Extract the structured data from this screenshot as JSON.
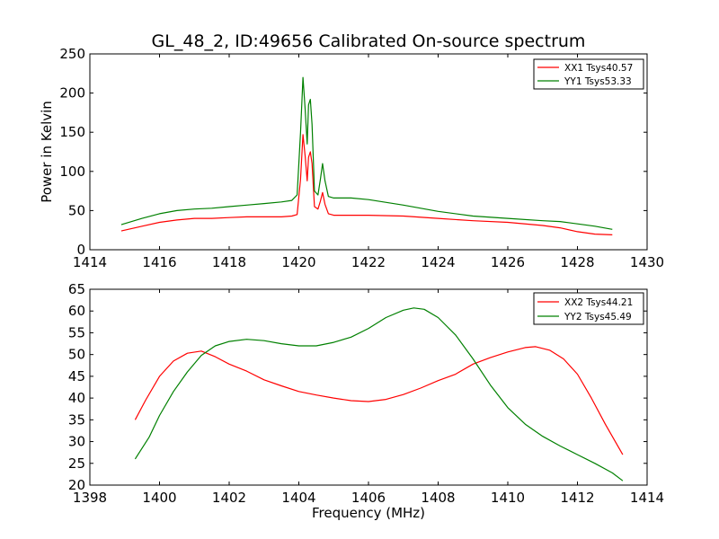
{
  "figure": {
    "title": "GL_48_2, ID:49656 Calibrated On-source spectrum",
    "ylabel": "Power in Kelvin",
    "xlabel": "Frequency (MHz)"
  },
  "colors": {
    "red": "#ff0000",
    "green": "#008000"
  },
  "chart_data": [
    {
      "type": "line",
      "title": "GL_48_2, ID:49656 Calibrated On-source spectrum",
      "ylabel": "Power in Kelvin",
      "xlabel": "",
      "xlim": [
        1414,
        1430
      ],
      "ylim": [
        0,
        250
      ],
      "xticks": [
        1414,
        1416,
        1418,
        1420,
        1422,
        1424,
        1426,
        1428,
        1430
      ],
      "yticks": [
        0,
        50,
        100,
        150,
        200,
        250
      ],
      "grid": false,
      "legend": "top-right",
      "series": [
        {
          "name": "XX1 Tsys40.57",
          "color": "#ff0000",
          "x": [
            1414.9,
            1415.5,
            1416.0,
            1416.5,
            1417.0,
            1417.5,
            1418.0,
            1418.5,
            1419.0,
            1419.5,
            1419.8,
            1419.95,
            1420.05,
            1420.12,
            1420.18,
            1420.24,
            1420.28,
            1420.33,
            1420.38,
            1420.45,
            1420.55,
            1420.62,
            1420.68,
            1420.75,
            1420.85,
            1421.0,
            1421.5,
            1422.0,
            1423.0,
            1424.0,
            1425.0,
            1426.0,
            1427.0,
            1427.5,
            1428.0,
            1428.5,
            1429.0
          ],
          "y": [
            24,
            30,
            35,
            38,
            40,
            40,
            41,
            42,
            42,
            42,
            43,
            45,
            90,
            147,
            120,
            88,
            118,
            125,
            110,
            55,
            52,
            62,
            73,
            58,
            46,
            44,
            44,
            44,
            43,
            40,
            37,
            35,
            31,
            28,
            23,
            20,
            19
          ]
        },
        {
          "name": "YY1 Tsys53.33",
          "color": "#008000",
          "x": [
            1414.9,
            1415.5,
            1416.0,
            1416.5,
            1417.0,
            1417.5,
            1418.0,
            1418.5,
            1419.0,
            1419.5,
            1419.8,
            1419.95,
            1420.05,
            1420.12,
            1420.18,
            1420.24,
            1420.28,
            1420.33,
            1420.38,
            1420.45,
            1420.55,
            1420.62,
            1420.68,
            1420.75,
            1420.85,
            1421.0,
            1421.5,
            1422.0,
            1423.0,
            1424.0,
            1425.0,
            1426.0,
            1427.0,
            1427.5,
            1428.0,
            1428.5,
            1429.0
          ],
          "y": [
            32,
            40,
            46,
            50,
            52,
            53,
            55,
            57,
            59,
            61,
            63,
            70,
            150,
            220,
            180,
            135,
            185,
            192,
            160,
            75,
            70,
            90,
            110,
            88,
            68,
            66,
            66,
            64,
            57,
            49,
            43,
            40,
            37,
            36,
            33,
            30,
            26
          ]
        }
      ]
    },
    {
      "type": "line",
      "title": "",
      "ylabel": "",
      "xlabel": "Frequency (MHz)",
      "xlim": [
        1398,
        1414
      ],
      "ylim": [
        20,
        65
      ],
      "xticks": [
        1398,
        1400,
        1402,
        1404,
        1406,
        1408,
        1410,
        1412,
        1414
      ],
      "yticks": [
        20,
        25,
        30,
        35,
        40,
        45,
        50,
        55,
        60,
        65
      ],
      "grid": false,
      "legend": "top-right",
      "series": [
        {
          "name": "XX2 Tsys44.21",
          "color": "#ff0000",
          "x": [
            1399.3,
            1399.6,
            1400.0,
            1400.4,
            1400.8,
            1401.2,
            1401.6,
            1402.0,
            1402.5,
            1403.0,
            1403.5,
            1404.0,
            1404.5,
            1405.0,
            1405.5,
            1406.0,
            1406.5,
            1407.0,
            1407.5,
            1408.0,
            1408.5,
            1409.0,
            1409.5,
            1410.0,
            1410.5,
            1410.8,
            1411.2,
            1411.6,
            1412.0,
            1412.4,
            1412.8,
            1413.3
          ],
          "y": [
            35,
            39.5,
            45,
            48.5,
            50.3,
            50.8,
            49.5,
            47.8,
            46.2,
            44.2,
            42.8,
            41.5,
            40.7,
            40.0,
            39.4,
            39.2,
            39.7,
            40.8,
            42.3,
            44.0,
            45.5,
            47.8,
            49.3,
            50.6,
            51.6,
            51.8,
            51.0,
            49.0,
            45.5,
            40.0,
            34.0,
            27.0
          ]
        },
        {
          "name": "YY2 Tsys45.49",
          "color": "#008000",
          "x": [
            1399.3,
            1399.7,
            1400.0,
            1400.4,
            1400.8,
            1401.2,
            1401.6,
            1402.0,
            1402.5,
            1403.0,
            1403.5,
            1404.0,
            1404.5,
            1405.0,
            1405.5,
            1406.0,
            1406.5,
            1407.0,
            1407.3,
            1407.6,
            1408.0,
            1408.5,
            1409.0,
            1409.5,
            1410.0,
            1410.5,
            1411.0,
            1411.5,
            1412.0,
            1412.5,
            1413.0,
            1413.3
          ],
          "y": [
            26,
            31,
            36,
            41.5,
            46,
            49.8,
            52,
            53,
            53.5,
            53.2,
            52.5,
            52,
            52,
            52.8,
            54,
            56,
            58.5,
            60.2,
            60.7,
            60.4,
            58.5,
            54.5,
            49,
            43,
            37.8,
            34,
            31.2,
            29.0,
            27.0,
            25,
            22.8,
            21
          ]
        }
      ]
    }
  ]
}
